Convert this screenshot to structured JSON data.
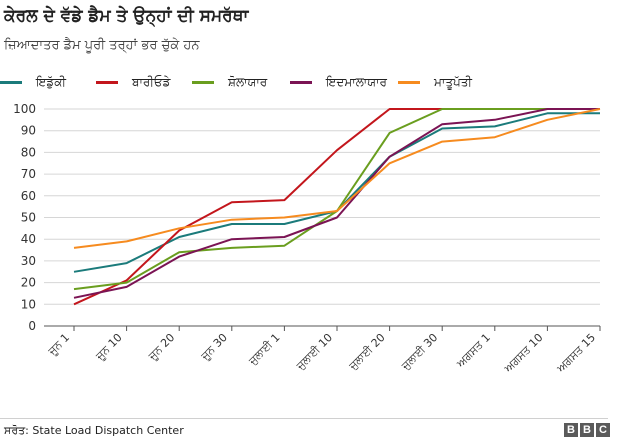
{
  "header": {
    "title": "ਕੇਰਲ ਦੇ ਵੱਡੇ ਡੈਮ ਤੇ ਉਨ੍ਹਾਂ ਦੀ ਸਮਰੱਥਾ",
    "subtitle": "ਜ਼ਿਆਦਾਤਰ ਡੈਮ ਪੂਰੀ ਤਰ੍ਹਾਂ ਭਰ ਚੁੱਕੇ ਹਨ"
  },
  "footer": {
    "source": "ਸਰੋਤ: State Load Dispatch Center",
    "logo": [
      "B",
      "B",
      "C"
    ]
  },
  "chart_data": {
    "type": "line",
    "title": "ਕੇਰਲ ਦੇ ਵੱਡੇ ਡੈਮ ਤੇ ਉਨ੍ਹਾਂ ਦੀ ਸਮਰੱਥਾ",
    "subtitle": "ਜ਼ਿਆਦਾਤਰ ਡੈਮ ਪੂਰੀ ਤਰ੍ਹਾਂ ਭਰ ਚੁੱਕੇ ਹਨ",
    "xlabel": "",
    "ylabel": "",
    "ylim": [
      0,
      100
    ],
    "yticks": [
      0,
      10,
      20,
      30,
      40,
      50,
      60,
      70,
      80,
      90,
      100
    ],
    "grid": true,
    "legend_position": "top",
    "categories": [
      "ਜੂਨ 1",
      "ਜੂਨ 10",
      "ਜੂਨ 20",
      "ਜੂਨ 30",
      "ਜੁਲਾਈ 1",
      "ਜੁਲਾਈ 10",
      "ਜੁਲਾਈ 20",
      "ਜੁਲਾਈ 30",
      "ਅਗਸਤ 1",
      "ਅਗਸਤ 10",
      "ਅਗਸਤ 15"
    ],
    "series": [
      {
        "name": "ਇਡੁੱਕੀ",
        "color": "#1b7b7b",
        "values": [
          25,
          29,
          41,
          47,
          47,
          53,
          78,
          91,
          92,
          98,
          98
        ]
      },
      {
        "name": "ਬਾਰੀਓਡੇ",
        "color": "#c3161c",
        "values": [
          10,
          21,
          44,
          57,
          58,
          81,
          100,
          100,
          100,
          100,
          100
        ]
      },
      {
        "name": "ਸ਼ੋਲਾਯਾਰ",
        "color": "#6a9e1f",
        "values": [
          17,
          20,
          34,
          36,
          37,
          53,
          89,
          100,
          100,
          100,
          100
        ]
      },
      {
        "name": "ਇਦਮਾਲਾਯਾਰ",
        "color": "#7b1454",
        "values": [
          13,
          18,
          32,
          40,
          41,
          50,
          78,
          93,
          95,
          100,
          100
        ]
      },
      {
        "name": "ਮਾਤੂਪੱਤੀ",
        "color": "#f68b1f",
        "values": [
          36,
          39,
          45,
          49,
          50,
          53,
          75,
          85,
          87,
          95,
          100
        ]
      }
    ]
  }
}
